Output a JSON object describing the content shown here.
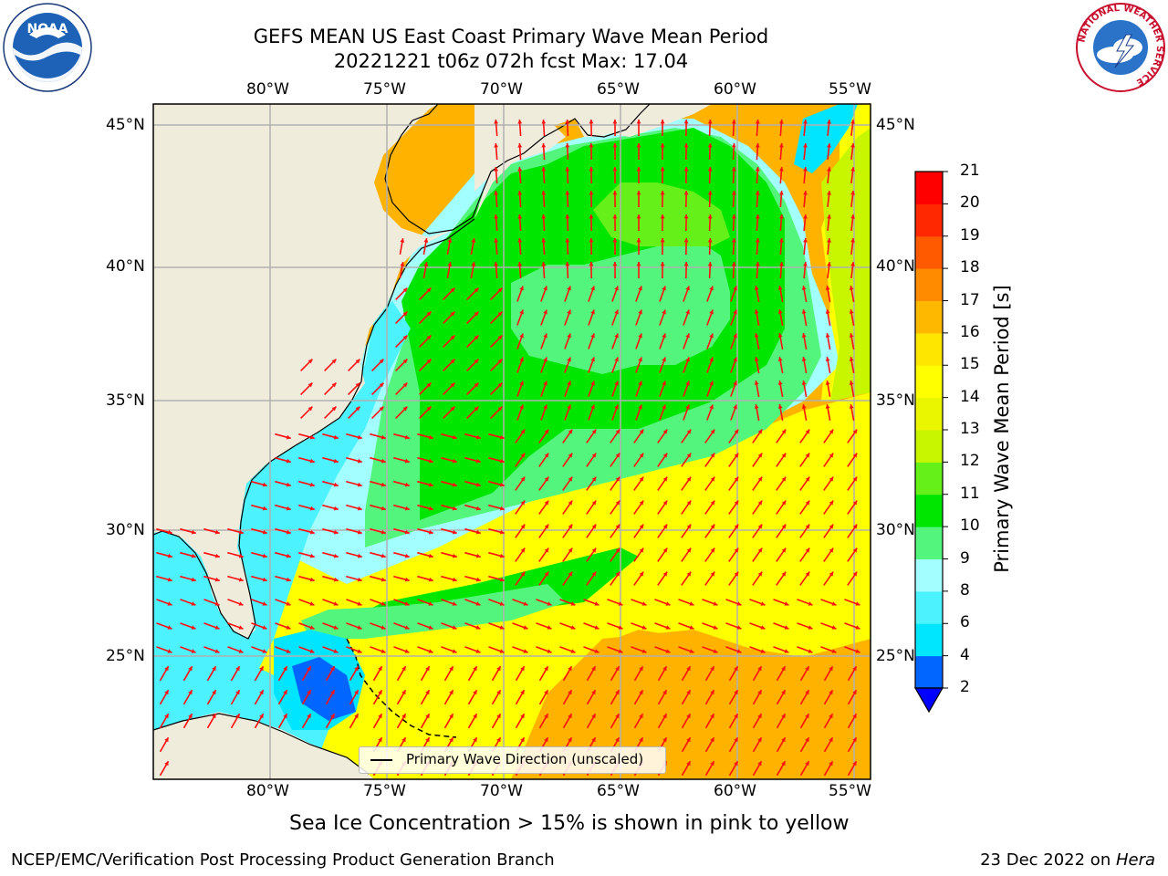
{
  "title_line1": "GEFS MEAN US East Coast Primary Wave Mean Period",
  "title_line2": "20221221 t06z 072h fcst   Max: 17.04",
  "map": {
    "lon_labels": [
      "80°W",
      "75°W",
      "70°W",
      "65°W",
      "60°W",
      "55°W"
    ],
    "lat_labels": [
      "45°N",
      "40°N",
      "35°N",
      "30°N",
      "25°N"
    ],
    "extent": {
      "lon_min": -85,
      "lon_max": -54.3,
      "lat_min": 20.5,
      "lat_max": 45.8
    },
    "land_color": "#efecdc",
    "arrow_color": "#ff1010"
  },
  "legend": {
    "label": "Primary Wave Direction (unscaled)"
  },
  "colorbar": {
    "title": "Primary Wave Mean Period [s]",
    "ticks": [
      "2",
      "4",
      "6",
      "8",
      "9",
      "10",
      "11",
      "12",
      "13",
      "14",
      "15",
      "16",
      "17",
      "18",
      "19",
      "20",
      "21"
    ],
    "colors": [
      "#0066ff",
      "#00e6ff",
      "#4df2ff",
      "#a3ffff",
      "#54f57c",
      "#00e600",
      "#66f01a",
      "#c8f500",
      "#eaf500",
      "#ffff00",
      "#ffe600",
      "#ffb800",
      "#ff8c00",
      "#ff5a00",
      "#ff2800",
      "#ff0000"
    ],
    "under_color": "#0000ff"
  },
  "subtitle": "Sea Ice Concentration > 15% is shown in pink to yellow",
  "footer_left": "NCEP/EMC/Verification Post Processing Product Generation Branch",
  "footer_date": "23 Dec 2022 on ",
  "footer_machine": "Hera",
  "logos": {
    "left": "NOAA",
    "right_ring": "NATIONAL WEATHER SERVICE"
  }
}
